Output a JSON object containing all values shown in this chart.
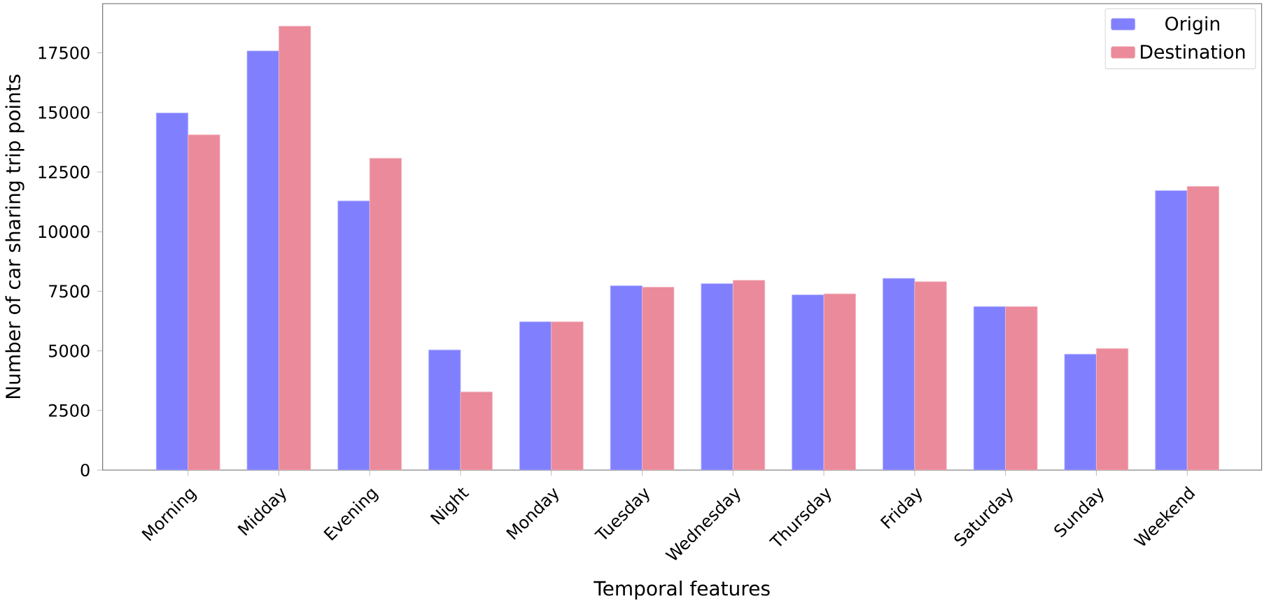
{
  "chart_data": {
    "type": "bar",
    "xlabel": "Temporal features",
    "ylabel": "Number of car sharing trip points",
    "categories": [
      "Morning",
      "Midday",
      "Evening",
      "Night",
      "Monday",
      "Tuesday",
      "Wednesday",
      "Thursday",
      "Friday",
      "Saturday",
      "Sunday",
      "Weekend"
    ],
    "series": [
      {
        "name": "Origin",
        "color": "#8080ff",
        "values": [
          14980,
          17580,
          11290,
          5040,
          6220,
          7730,
          7820,
          7350,
          8040,
          6860,
          4860,
          11720
        ]
      },
      {
        "name": "Destination",
        "color": "#eb8a9a",
        "values": [
          14060,
          18620,
          13080,
          3280,
          6220,
          7670,
          7960,
          7390,
          7900,
          6860,
          5100,
          11900
        ]
      }
    ],
    "ylim": [
      0,
      19560
    ],
    "yticks": [
      0,
      2500,
      5000,
      7500,
      10000,
      12500,
      15000,
      17500
    ],
    "grid": false,
    "legend": "top right"
  }
}
